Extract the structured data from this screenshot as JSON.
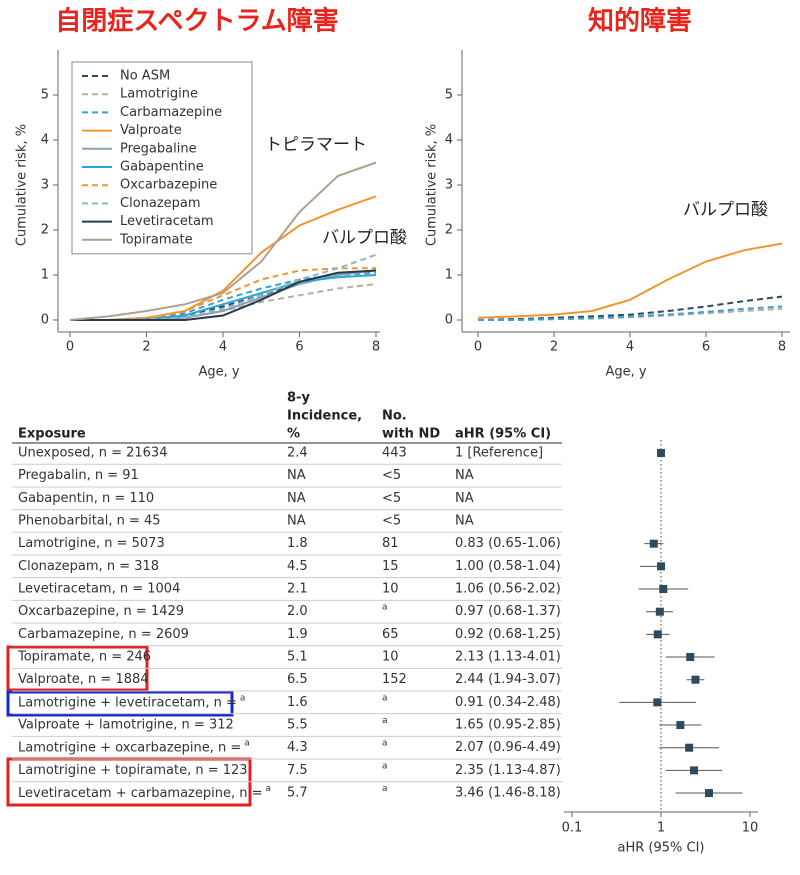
{
  "chart_data": [
    {
      "type": "line",
      "title": "自閉症スペクトラム障害",
      "xlabel": "Age, y",
      "ylabel": "Cumulative risk, %",
      "annotations": [
        "トピラマート",
        "バルプロ酸"
      ],
      "x": [
        0,
        1,
        2,
        3,
        4,
        5,
        6,
        7,
        8
      ],
      "xlim": [
        0,
        8
      ],
      "xticks": [
        0,
        2,
        4,
        6,
        8
      ],
      "ylim": [
        0,
        6
      ],
      "yticks": [
        0,
        1,
        2,
        3,
        4,
        5
      ],
      "legend": "upper left",
      "series": [
        {
          "name": "No ASM",
          "color": "#2e4a62",
          "dashed": true,
          "values": [
            0,
            0,
            0.02,
            0.1,
            0.3,
            0.55,
            0.8,
            1.0,
            1.1
          ]
        },
        {
          "name": "Lamotrigine",
          "color": "#b8b09a",
          "dashed": true,
          "values": [
            0,
            0,
            0,
            0.05,
            0.2,
            0.4,
            0.55,
            0.7,
            0.8
          ]
        },
        {
          "name": "Carbamazepine",
          "color": "#3aa0d8",
          "dashed": true,
          "values": [
            0,
            0,
            0.02,
            0.15,
            0.45,
            0.7,
            0.9,
            1.0,
            1.05
          ]
        },
        {
          "name": "Valproate",
          "color": "#f0962e",
          "dashed": false,
          "values": [
            0,
            0,
            0.05,
            0.2,
            0.65,
            1.5,
            2.1,
            2.45,
            2.75
          ]
        },
        {
          "name": "Pregabaline",
          "color": "#8aa0ad",
          "dashed": false,
          "values": [
            0,
            0,
            0,
            0.05,
            0.2,
            0.5,
            0.8,
            1.0,
            1.1
          ]
        },
        {
          "name": "Gabapentine",
          "color": "#2aa5d6",
          "dashed": false,
          "values": [
            0,
            0,
            0.02,
            0.1,
            0.35,
            0.6,
            0.85,
            0.95,
            1.0
          ]
        },
        {
          "name": "Oxcarbazepine",
          "color": "#f0962e",
          "dashed": true,
          "values": [
            0,
            0,
            0.02,
            0.2,
            0.55,
            0.9,
            1.1,
            1.15,
            1.15
          ]
        },
        {
          "name": "Clonazepam",
          "color": "#8fb4cc",
          "dashed": true,
          "values": [
            0,
            0,
            0,
            0.05,
            0.25,
            0.55,
            0.9,
            1.15,
            1.45
          ]
        },
        {
          "name": "Levetiracetam",
          "color": "#253a4a",
          "dashed": false,
          "values": [
            0,
            0,
            0,
            0,
            0.1,
            0.45,
            0.85,
            1.05,
            1.1
          ]
        },
        {
          "name": "Topiramate",
          "color": "#b0a090",
          "dashed": false,
          "values": [
            0,
            0.08,
            0.2,
            0.35,
            0.6,
            1.3,
            2.4,
            3.2,
            3.5
          ]
        }
      ]
    },
    {
      "type": "line",
      "title": "知的障害",
      "xlabel": "Age, y",
      "ylabel": "Cumulative risk, %",
      "annotations": [
        "バルプロ酸"
      ],
      "x": [
        0,
        1,
        2,
        3,
        4,
        5,
        6,
        7,
        8
      ],
      "xlim": [
        0,
        8
      ],
      "xticks": [
        0,
        2,
        4,
        6,
        8
      ],
      "ylim": [
        0,
        6
      ],
      "yticks": [
        0,
        1,
        2,
        3,
        4,
        5
      ],
      "series": [
        {
          "color": "#f0962e",
          "dashed": false,
          "values": [
            0.05,
            0.08,
            0.12,
            0.2,
            0.45,
            0.9,
            1.3,
            1.55,
            1.7
          ]
        },
        {
          "color": "#2e4a62",
          "dashed": true,
          "values": [
            0,
            0.02,
            0.05,
            0.08,
            0.12,
            0.2,
            0.3,
            0.42,
            0.52
          ]
        },
        {
          "color": "#b8b09a",
          "dashed": true,
          "values": [
            0,
            0,
            0.02,
            0.03,
            0.06,
            0.1,
            0.15,
            0.2,
            0.25
          ]
        },
        {
          "color": "#3aa0d8",
          "dashed": true,
          "values": [
            0,
            0,
            0.02,
            0.04,
            0.08,
            0.12,
            0.18,
            0.25,
            0.3
          ]
        }
      ]
    },
    {
      "type": "forest",
      "xlabel": "aHR (95% CI)",
      "log": true,
      "xlim": [
        0.1,
        10
      ],
      "xticks": [
        0.1,
        1,
        10
      ],
      "reference": 1,
      "color": "#2e4a5e",
      "values": [
        1,
        null,
        null,
        null,
        0.83,
        1.0,
        1.06,
        0.97,
        0.92,
        2.13,
        2.44,
        0.91,
        1.65,
        2.07,
        2.35,
        3.46
      ],
      "ci_low": [
        null,
        null,
        null,
        null,
        0.65,
        0.58,
        0.56,
        0.68,
        0.68,
        1.13,
        1.94,
        0.34,
        0.95,
        0.96,
        1.13,
        1.46
      ],
      "ci_high": [
        null,
        null,
        null,
        null,
        1.06,
        1.04,
        2.02,
        1.37,
        1.25,
        4.01,
        3.07,
        2.48,
        2.85,
        4.49,
        4.87,
        8.18
      ]
    }
  ],
  "table": {
    "columns": [
      [
        "Exposure"
      ],
      [
        "8-y",
        "Incidence,",
        "%"
      ],
      [
        "No.",
        "with ND"
      ],
      [
        "aHR (95% CI)"
      ]
    ],
    "rows": [
      [
        "Unexposed, n = 21634",
        "2.4",
        "443",
        "1 [Reference]"
      ],
      [
        "Pregabalin, n = 91",
        "NA",
        "<5",
        "NA"
      ],
      [
        "Gabapentin, n = 110",
        "NA",
        "<5",
        "NA"
      ],
      [
        "Phenobarbital, n = 45",
        "NA",
        "<5",
        "NA"
      ],
      [
        "Lamotrigine, n = 5073",
        "1.8",
        "81",
        "0.83 (0.65-1.06)"
      ],
      [
        "Clonazepam, n = 318",
        "4.5",
        "15",
        "1.00 (0.58-1.04)"
      ],
      [
        "Levetiracetam, n = 1004",
        "2.1",
        "10",
        "1.06 (0.56-2.02)"
      ],
      [
        "Oxcarbazepine, n = 1429",
        "2.0",
        {
          "sup": "a"
        },
        "0.97 (0.68-1.37)"
      ],
      [
        "Carbamazepine, n = 2609",
        "1.9",
        "65",
        "0.92 (0.68-1.25)"
      ],
      [
        "Topiramate, n = 246",
        "5.1",
        "10",
        "2.13 (1.13-4.01)"
      ],
      [
        "Valproate, n = 1884",
        "6.5",
        "152",
        "2.44 (1.94-3.07)"
      ],
      [
        {
          "text": "Lamotrigine + levetiracetam, n =",
          "sup": "a"
        },
        "1.6",
        {
          "sup": "a"
        },
        "0.91 (0.34-2.48)"
      ],
      [
        "Valproate + lamotrigine, n = 312",
        "5.5",
        {
          "sup": "a"
        },
        "1.65 (0.95-2.85)"
      ],
      [
        {
          "text": "Lamotrigine + oxcarbazepine, n =",
          "sup": "a"
        },
        "4.3",
        {
          "sup": "a"
        },
        "2.07 (0.96-4.49)"
      ],
      [
        "Lamotrigine + topiramate, n = 123",
        "7.5",
        {
          "sup": "a"
        },
        "2.35 (1.13-4.87)"
      ],
      [
        {
          "text": "Levetiracetam + carbamazepine, n =",
          "sup": "a"
        },
        "5.7",
        {
          "sup": "a"
        },
        "3.46 (1.46-8.18)"
      ]
    ]
  }
}
